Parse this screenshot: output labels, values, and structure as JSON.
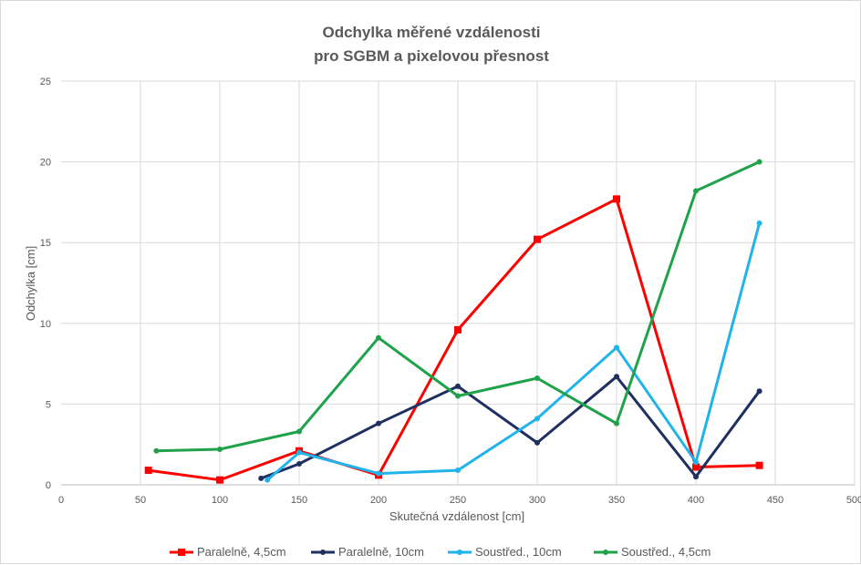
{
  "chart_data": {
    "type": "line",
    "title": [
      "Odchylka měřené vzdálenosti",
      "pro SGBM a pixelovou přesnost"
    ],
    "xlabel": "Skutečná vzdálenost [cm]",
    "ylabel": "Odchylka [cm]",
    "xlim": [
      0,
      500
    ],
    "ylim": [
      0,
      25
    ],
    "xticks": [
      "0",
      "50",
      "100",
      "150",
      "200",
      "250",
      "300",
      "350",
      "400",
      "450",
      "500"
    ],
    "yticks": [
      "0",
      "5",
      "10",
      "15",
      "20",
      "25"
    ],
    "grid": true,
    "legend_position": "bottom",
    "series": [
      {
        "name": "Paralelně, 4,5cm",
        "color": "#ff0000",
        "marker": "square",
        "x": [
          55,
          100,
          150,
          200,
          250,
          300,
          350,
          400,
          440
        ],
        "y": [
          0.9,
          0.3,
          2.1,
          0.6,
          9.6,
          15.2,
          17.7,
          1.1,
          1.2
        ]
      },
      {
        "name": "Paralelně, 10cm",
        "color": "#1f2f5f",
        "marker": "circle",
        "x": [
          126,
          150,
          200,
          250,
          300,
          350,
          400,
          440
        ],
        "y": [
          0.4,
          1.3,
          3.8,
          6.1,
          2.6,
          6.7,
          0.5,
          5.8
        ]
      },
      {
        "name": "Soustřed., 10cm",
        "color": "#21b3ea",
        "marker": "circle",
        "x": [
          130,
          150,
          200,
          250,
          300,
          350,
          400,
          440
        ],
        "y": [
          0.3,
          2.0,
          0.7,
          0.9,
          4.1,
          8.5,
          1.4,
          16.2
        ]
      },
      {
        "name": "Soustřed., 4,5cm",
        "color": "#1fa24a",
        "marker": "circle",
        "x": [
          60,
          100,
          150,
          200,
          250,
          300,
          350,
          400,
          440
        ],
        "y": [
          2.1,
          2.2,
          3.3,
          9.1,
          5.5,
          6.6,
          3.8,
          18.2,
          20.0
        ]
      }
    ]
  }
}
